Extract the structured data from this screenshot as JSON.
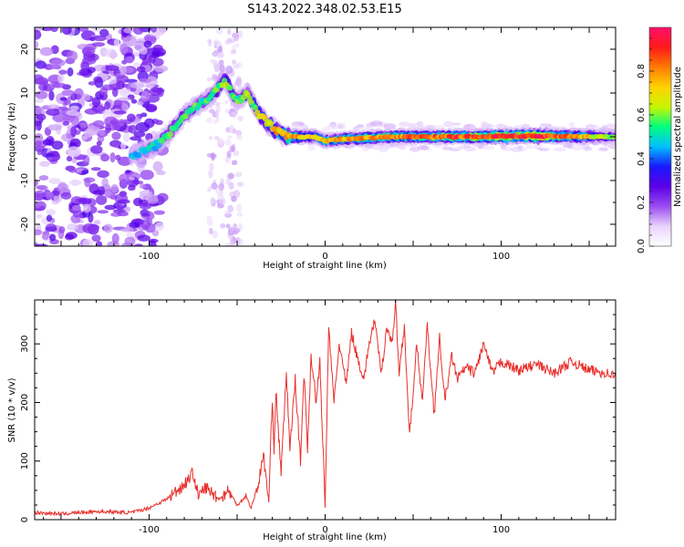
{
  "title": "S143.2022.348.02.53.E15",
  "colors": {
    "snr_line": "#e8302c",
    "axis": "#000000",
    "rainbow": [
      "#ffffff",
      "#e9d4fb",
      "#9b4cf0",
      "#5b00e6",
      "#1818ff",
      "#00bfff",
      "#00ff80",
      "#c8f500",
      "#ffd200",
      "#ff7a00",
      "#ff1a1a",
      "#ff0f6c"
    ]
  },
  "chart_data": [
    {
      "type": "heatmap",
      "title": "S143.2022.348.02.53.E15",
      "xlabel": "Height of straight line (km)",
      "ylabel": "Frequency (Hz)",
      "xlim": [
        -165,
        165
      ],
      "ylim": [
        -25,
        25
      ],
      "xticks": [
        -100,
        0,
        100
      ],
      "yticks": [
        -20,
        -10,
        0,
        10,
        20
      ],
      "xtick_labels": [
        "-100",
        "0",
        "100"
      ],
      "ytick_labels": [
        "-20",
        "-10",
        "0",
        "10",
        "20"
      ],
      "colorbar": {
        "label": "Normalized spectral amplitude",
        "range": [
          0,
          1
        ],
        "ticks": [
          0.0,
          0.2,
          0.4,
          0.6,
          0.8
        ],
        "tick_labels": [
          "0.0",
          "0.2",
          "0.4",
          "0.6",
          "0.8"
        ]
      },
      "ridge": {
        "x": [
          -110,
          -100,
          -90,
          -80,
          -70,
          -63,
          -57,
          -50,
          -44,
          -37,
          -30,
          -22,
          -15,
          -5,
          0,
          10,
          40,
          80,
          120,
          165
        ],
        "frequency": [
          -4,
          -3,
          0,
          5,
          8,
          10,
          13,
          8,
          10,
          5,
          2,
          0,
          0,
          0,
          -1,
          -0.5,
          0,
          0,
          0.2,
          0
        ],
        "amplitude": [
          0.35,
          0.4,
          0.45,
          0.5,
          0.45,
          0.5,
          0.55,
          0.5,
          0.5,
          0.6,
          0.65,
          0.7,
          0.7,
          0.6,
          0.65,
          0.7,
          0.75,
          0.8,
          0.9,
          0.5
        ]
      },
      "noise_region_x": [
        -165,
        -100
      ]
    },
    {
      "type": "line",
      "xlabel": "Height of straight line (km)",
      "ylabel": "SNR (10 * v/v)",
      "xlim": [
        -165,
        165
      ],
      "ylim": [
        0,
        375
      ],
      "xticks": [
        -100,
        0,
        100
      ],
      "yticks": [
        0,
        100,
        200,
        300
      ],
      "xtick_labels": [
        "-100",
        "0",
        "100"
      ],
      "ytick_labels": [
        "0",
        "100",
        "200",
        "300"
      ],
      "series": [
        {
          "x": [
            -165,
            -150,
            -130,
            -110,
            -100,
            -90,
            -80,
            -75,
            -72,
            -68,
            -60,
            -55,
            -50,
            -45,
            -42,
            -38,
            -35,
            -32,
            -30,
            -29,
            -28,
            -25,
            -22,
            -20,
            -17,
            -14,
            -12,
            -10,
            -8,
            -5,
            -3,
            0,
            2,
            5,
            8,
            12,
            15,
            18,
            22,
            25,
            28,
            32,
            35,
            38,
            40,
            42,
            45,
            48,
            52,
            55,
            58,
            62,
            65,
            68,
            72,
            75,
            80,
            85,
            90,
            95,
            100,
            110,
            120,
            130,
            140,
            150,
            160,
            165
          ],
          "y": [
            12,
            10,
            14,
            12,
            20,
            35,
            60,
            80,
            40,
            55,
            35,
            50,
            25,
            40,
            20,
            60,
            110,
            30,
            210,
            120,
            220,
            80,
            250,
            120,
            240,
            100,
            250,
            120,
            280,
            200,
            270,
            20,
            330,
            200,
            300,
            230,
            320,
            280,
            240,
            300,
            340,
            250,
            330,
            300,
            370,
            250,
            330,
            140,
            300,
            200,
            330,
            180,
            310,
            200,
            280,
            240,
            260,
            250,
            300,
            250,
            270,
            255,
            265,
            250,
            270,
            255,
            250,
            245
          ]
        }
      ]
    }
  ]
}
